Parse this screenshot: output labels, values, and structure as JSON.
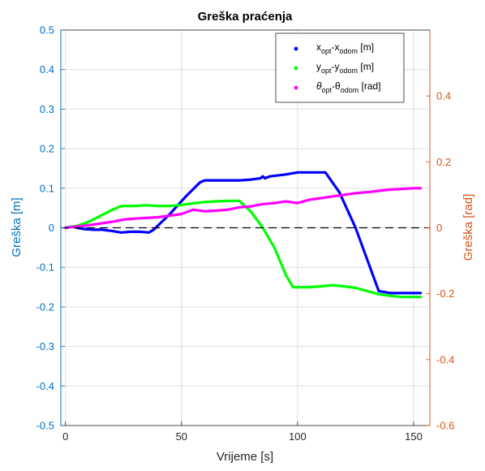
{
  "chart_data": {
    "type": "line",
    "title": "Greška praćenja",
    "xlabel": "Vrijeme [s]",
    "ylabel_left": "Greška [m]",
    "ylabel_right": "Greška [rad]",
    "xlim": [
      -2,
      157
    ],
    "ylim_left": [
      -0.5,
      0.5
    ],
    "ylim_right": [
      -0.6,
      0.6
    ],
    "x_ticks": [
      "0",
      "50",
      "100",
      "150"
    ],
    "x_tick_values": [
      0,
      50,
      100,
      150
    ],
    "y_left_ticks": [
      "0.5",
      "0.4",
      "0.3",
      "0.2",
      "0.1",
      "0",
      "-0.1",
      "-0.2",
      "-0.3",
      "-0.4",
      "-0.5"
    ],
    "y_left_tick_values": [
      0.5,
      0.4,
      0.3,
      0.2,
      0.1,
      0,
      -0.1,
      -0.2,
      -0.3,
      -0.4,
      -0.5
    ],
    "y_right_ticks": [
      "0.4",
      "0.2",
      "0",
      "-0.2",
      "-0.4",
      "-0.6"
    ],
    "y_right_tick_values": [
      0.4,
      0.2,
      0,
      -0.2,
      -0.4,
      -0.6
    ],
    "grid": true,
    "legend_position": "top-right",
    "reference_line": {
      "y": 0,
      "style": "dashed",
      "color": "#000000"
    },
    "colors": {
      "axis_left": "#0072BD",
      "axis_right": "#D95319",
      "grid": "#dfdfdf"
    },
    "series": [
      {
        "name": "x_opt-x_odom [m]",
        "label_parts": {
          "a": "x",
          "a_sub": "opt",
          "b": "-x",
          "b_sub": "odom",
          "unit": " [m]"
        },
        "axis": "left",
        "color": "#0000FF",
        "x": [
          0,
          3,
          5,
          8,
          12,
          16,
          20,
          24,
          28,
          32,
          36,
          38,
          45,
          52,
          58,
          60,
          65,
          70,
          75,
          80,
          84,
          85,
          86,
          88,
          95,
          100,
          105,
          110,
          112,
          118,
          125,
          130,
          135,
          140,
          145,
          150,
          153
        ],
        "y": [
          0,
          0.003,
          0,
          -0.003,
          -0.005,
          -0.005,
          -0.008,
          -0.012,
          -0.01,
          -0.01,
          -0.012,
          -0.005,
          0.035,
          0.08,
          0.115,
          0.12,
          0.12,
          0.12,
          0.12,
          0.122,
          0.125,
          0.13,
          0.125,
          0.13,
          0.135,
          0.14,
          0.14,
          0.14,
          0.14,
          0.09,
          0.0,
          -0.08,
          -0.16,
          -0.165,
          -0.165,
          -0.165,
          -0.165
        ]
      },
      {
        "name": "y_opt-y_odom [m]",
        "label_parts": {
          "a": "y",
          "a_sub": "opt",
          "b": "-y",
          "b_sub": "odom",
          "unit": " [m]"
        },
        "axis": "left",
        "color": "#00FF00",
        "x": [
          0,
          5,
          10,
          15,
          20,
          24,
          30,
          35,
          40,
          45,
          50,
          55,
          60,
          65,
          70,
          75,
          80,
          85,
          90,
          95,
          98,
          100,
          105,
          110,
          115,
          120,
          125,
          130,
          135,
          140,
          145,
          150,
          153
        ],
        "y": [
          0,
          0.005,
          0.015,
          0.03,
          0.045,
          0.055,
          0.055,
          0.057,
          0.055,
          0.055,
          0.058,
          0.062,
          0.065,
          0.067,
          0.068,
          0.068,
          0.04,
          0.0,
          -0.05,
          -0.12,
          -0.15,
          -0.15,
          -0.15,
          -0.148,
          -0.145,
          -0.148,
          -0.152,
          -0.16,
          -0.168,
          -0.172,
          -0.175,
          -0.175,
          -0.175
        ]
      },
      {
        "name": "θ_opt-θ_odom [rad]",
        "label_parts": {
          "a": "θ",
          "a_sub": "opt",
          "b": "-θ",
          "b_sub": "odom",
          "unit": " [rad]"
        },
        "axis": "right",
        "color": "#FF00FF",
        "x": [
          0,
          10,
          20,
          25,
          30,
          40,
          50,
          55,
          60,
          65,
          70,
          75,
          80,
          85,
          90,
          95,
          100,
          105,
          110,
          115,
          120,
          125,
          130,
          135,
          140,
          145,
          150,
          153
        ],
        "y": [
          0,
          0.008,
          0.018,
          0.025,
          0.028,
          0.032,
          0.042,
          0.055,
          0.05,
          0.052,
          0.055,
          0.062,
          0.065,
          0.072,
          0.075,
          0.08,
          0.075,
          0.085,
          0.09,
          0.095,
          0.1,
          0.105,
          0.108,
          0.112,
          0.116,
          0.118,
          0.12,
          0.12
        ]
      }
    ]
  }
}
